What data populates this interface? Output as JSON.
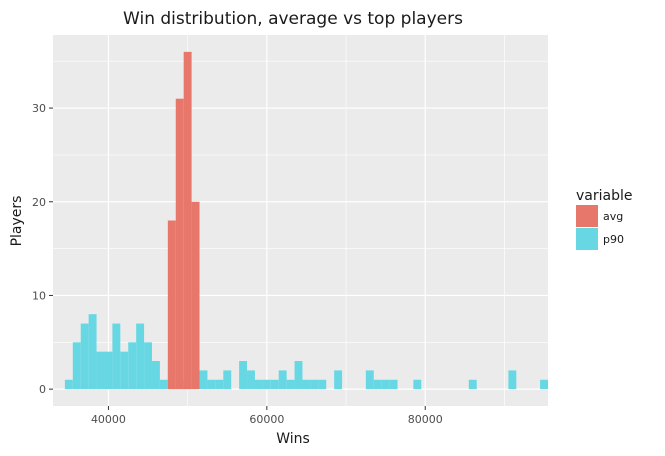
{
  "chart_data": {
    "type": "bar",
    "title": "Win distribution, average vs top players",
    "xlabel": "Wins",
    "ylabel": "Players",
    "xlim": [
      33000,
      95500
    ],
    "ylim": [
      -1.8,
      37.8
    ],
    "x_ticks": [
      40000,
      60000,
      80000
    ],
    "x_tick_labels": [
      "40000",
      "60000",
      "80000"
    ],
    "y_ticks": [
      0,
      10,
      20,
      30
    ],
    "y_tick_labels": [
      "0",
      "10",
      "20",
      "30"
    ],
    "bin_width": 1000,
    "grid": true,
    "legend": {
      "title": "variable",
      "position": "right"
    },
    "series": [
      {
        "name": "avg",
        "color": "#e8776b",
        "bins": [
          {
            "x": 48000,
            "y": 18
          },
          {
            "x": 49000,
            "y": 31
          },
          {
            "x": 50000,
            "y": 36
          },
          {
            "x": 51000,
            "y": 20
          }
        ]
      },
      {
        "name": "p90",
        "color": "#67d8e3",
        "bins": [
          {
            "x": 35000,
            "y": 1
          },
          {
            "x": 36000,
            "y": 5
          },
          {
            "x": 37000,
            "y": 7
          },
          {
            "x": 38000,
            "y": 8
          },
          {
            "x": 39000,
            "y": 4
          },
          {
            "x": 40000,
            "y": 4
          },
          {
            "x": 41000,
            "y": 7
          },
          {
            "x": 42000,
            "y": 4
          },
          {
            "x": 43000,
            "y": 5
          },
          {
            "x": 44000,
            "y": 7
          },
          {
            "x": 45000,
            "y": 5
          },
          {
            "x": 46000,
            "y": 3
          },
          {
            "x": 47000,
            "y": 1
          },
          {
            "x": 48000,
            "y": 3
          },
          {
            "x": 49000,
            "y": 1
          },
          {
            "x": 50000,
            "y": 1
          },
          {
            "x": 52000,
            "y": 2
          },
          {
            "x": 53000,
            "y": 1
          },
          {
            "x": 54000,
            "y": 1
          },
          {
            "x": 55000,
            "y": 2
          },
          {
            "x": 57000,
            "y": 3
          },
          {
            "x": 58000,
            "y": 2
          },
          {
            "x": 59000,
            "y": 1
          },
          {
            "x": 60000,
            "y": 1
          },
          {
            "x": 61000,
            "y": 1
          },
          {
            "x": 62000,
            "y": 2
          },
          {
            "x": 63000,
            "y": 1
          },
          {
            "x": 64000,
            "y": 3
          },
          {
            "x": 65000,
            "y": 1
          },
          {
            "x": 66000,
            "y": 1
          },
          {
            "x": 67000,
            "y": 1
          },
          {
            "x": 69000,
            "y": 2
          },
          {
            "x": 73000,
            "y": 2
          },
          {
            "x": 74000,
            "y": 1
          },
          {
            "x": 75000,
            "y": 1
          },
          {
            "x": 76000,
            "y": 1
          },
          {
            "x": 79000,
            "y": 1
          },
          {
            "x": 86000,
            "y": 1
          },
          {
            "x": 91000,
            "y": 2
          },
          {
            "x": 95000,
            "y": 1
          }
        ]
      }
    ]
  }
}
